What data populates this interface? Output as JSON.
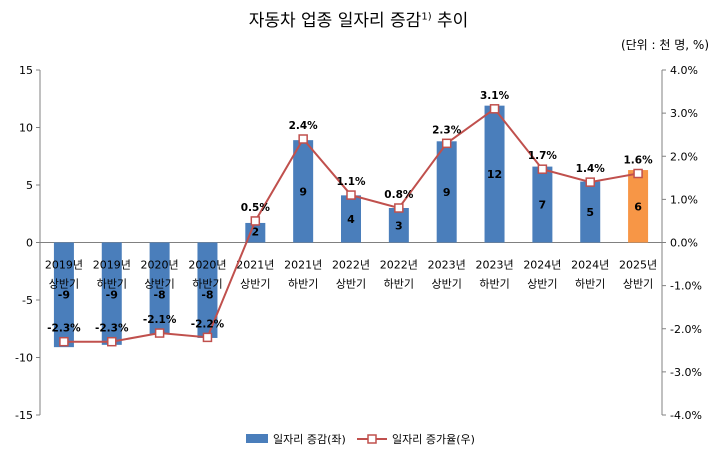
{
  "title": {
    "text": "자동차 업종 일자리 증감",
    "footnote": "1)",
    "suffix": " 추이"
  },
  "unit_label": "(단위 : 천 명, %)",
  "chart_data": {
    "type": "bar",
    "categories": [
      [
        "2019년",
        "상반기"
      ],
      [
        "2019년",
        "하반기"
      ],
      [
        "2020년",
        "상반기"
      ],
      [
        "2020년",
        "하반기"
      ],
      [
        "2021년",
        "상반기"
      ],
      [
        "2021년",
        "하반기"
      ],
      [
        "2022년",
        "상반기"
      ],
      [
        "2022년",
        "하반기"
      ],
      [
        "2023년",
        "상반기"
      ],
      [
        "2023년",
        "하반기"
      ],
      [
        "2024년",
        "상반기"
      ],
      [
        "2024년",
        "하반기"
      ],
      [
        "2025년",
        "상반기"
      ]
    ],
    "series": [
      {
        "name": "일자리 증감(좌)",
        "type": "bar",
        "axis": "left",
        "values": [
          -9,
          -9,
          -8,
          -8,
          2,
          9,
          4,
          3,
          9,
          12,
          7,
          5,
          6
        ],
        "labels": [
          "-9",
          "-9",
          "-8",
          "-8",
          "2",
          "9",
          "4",
          "3",
          "9",
          "12",
          "7",
          "5",
          "6"
        ],
        "bar_heights": [
          -9.1,
          -8.9,
          -8.0,
          -8.3,
          1.7,
          8.9,
          4.1,
          3.0,
          8.8,
          11.9,
          6.6,
          5.3,
          6.3
        ],
        "color": "#4a7ebb",
        "highlight_index": 12,
        "highlight_color": "#f79646"
      },
      {
        "name": "일자리 증가율(우)",
        "type": "line",
        "axis": "right",
        "values": [
          -2.3,
          -2.3,
          -2.1,
          -2.2,
          0.5,
          2.4,
          1.1,
          0.8,
          2.3,
          3.1,
          1.7,
          1.4,
          1.6
        ],
        "labels": [
          "-2.3%",
          "-2.3%",
          "-2.1%",
          "-2.2%",
          "0.5%",
          "2.4%",
          "1.1%",
          "0.8%",
          "2.3%",
          "3.1%",
          "1.7%",
          "1.4%",
          "1.6%"
        ],
        "color": "#c0504d",
        "highlight_label_color": "#c00000"
      }
    ],
    "y_left": {
      "min": -15,
      "max": 15,
      "step": 5,
      "ticks": [
        "-15",
        "-10",
        "-5",
        "0",
        "5",
        "10",
        "15"
      ]
    },
    "y_right": {
      "min": -4,
      "max": 4,
      "step": 1,
      "ticks": [
        "-4.0%",
        "-3.0%",
        "-2.0%",
        "-1.0%",
        "0.0%",
        "1.0%",
        "2.0%",
        "3.0%",
        "4.0%"
      ]
    },
    "grid": false,
    "legend_position": "bottom"
  }
}
